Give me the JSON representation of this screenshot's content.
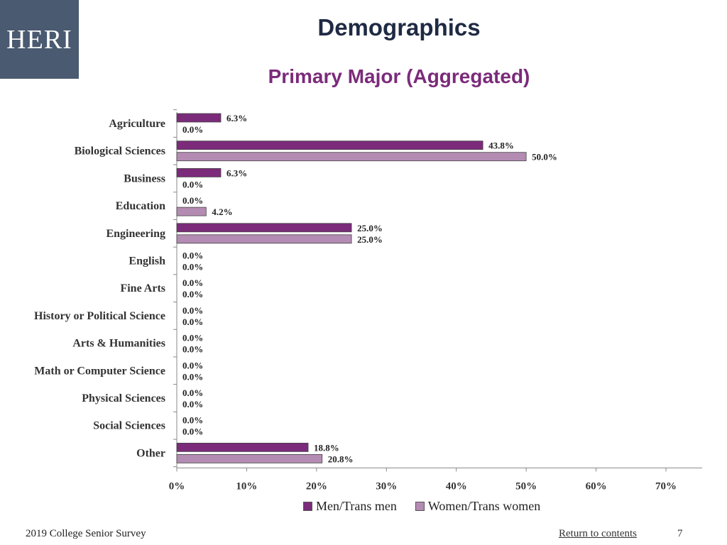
{
  "logo": {
    "text": "HERI"
  },
  "header": {
    "title": "Demographics",
    "subtitle": "Primary Major (Aggregated)"
  },
  "chart_data": {
    "type": "bar",
    "orientation": "horizontal",
    "categories": [
      "Agriculture",
      "Biological Sciences",
      "Business",
      "Education",
      "Engineering",
      "English",
      "Fine Arts",
      "History or Political Science",
      "Arts & Humanities",
      "Math or Computer Science",
      "Physical Sciences",
      "Social Sciences",
      "Other"
    ],
    "series": [
      {
        "name": "Men/Trans men",
        "color": "#7b2b7a",
        "values": [
          6.3,
          43.8,
          6.3,
          0.0,
          25.0,
          0.0,
          0.0,
          0.0,
          0.0,
          0.0,
          0.0,
          0.0,
          18.8
        ],
        "labels": [
          "6.3%",
          "43.8%",
          "6.3%",
          "0.0%",
          "25.0%",
          "0.0%",
          "0.0%",
          "0.0%",
          "0.0%",
          "0.0%",
          "0.0%",
          "0.0%",
          "18.8%"
        ]
      },
      {
        "name": "Women/Trans women",
        "color": "#b48bb3",
        "values": [
          0.0,
          50.0,
          0.0,
          4.2,
          25.0,
          0.0,
          0.0,
          0.0,
          0.0,
          0.0,
          0.0,
          0.0,
          20.8
        ],
        "labels": [
          "0.0%",
          "50.0%",
          "0.0%",
          "4.2%",
          "25.0%",
          "0.0%",
          "0.0%",
          "0.0%",
          "0.0%",
          "0.0%",
          "0.0%",
          "0.0%",
          "20.8%"
        ]
      }
    ],
    "xlim": [
      0,
      70
    ],
    "x_ticks": [
      "0%",
      "10%",
      "20%",
      "30%",
      "40%",
      "50%",
      "60%",
      "70%"
    ],
    "grid": false,
    "legend": "bottom"
  },
  "footer": {
    "survey": "2019 College Senior Survey",
    "return_link": "Return to contents",
    "page_number": "7"
  }
}
